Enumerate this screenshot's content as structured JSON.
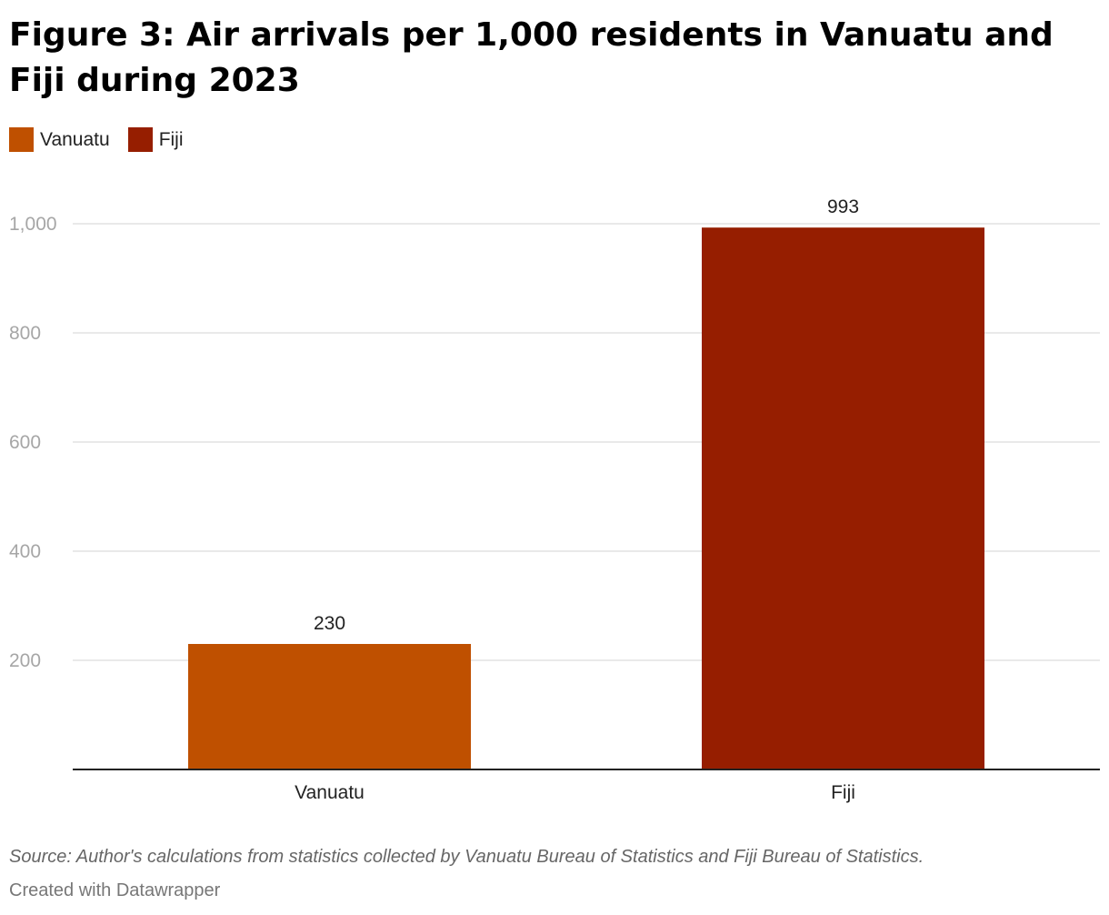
{
  "chart_data": {
    "type": "bar",
    "title": "Figure 3: Air arrivals per 1,000 residents in Vanuatu and Fiji during 2023",
    "categories": [
      "Vanuatu",
      "Fiji"
    ],
    "values": [
      230,
      993
    ],
    "value_labels": [
      "230",
      "993"
    ],
    "colors": [
      "#bf5000",
      "#961e00"
    ],
    "legend": [
      {
        "label": "Vanuatu",
        "color": "#bf5000"
      },
      {
        "label": "Fiji",
        "color": "#961e00"
      }
    ],
    "legend_placement": "top-left",
    "y_ticks": [
      200,
      400,
      600,
      800,
      1000
    ],
    "y_tick_labels": [
      "200",
      "400",
      "600",
      "800",
      "1,000"
    ],
    "ylim": [
      0,
      1000
    ],
    "grid": true,
    "xlabel": "",
    "ylabel": ""
  },
  "footer": {
    "source": "Source: Author's calculations from statistics collected by Vanuatu Bureau of Statistics and Fiji Bureau of Statistics.",
    "credit": "Created with Datawrapper"
  }
}
